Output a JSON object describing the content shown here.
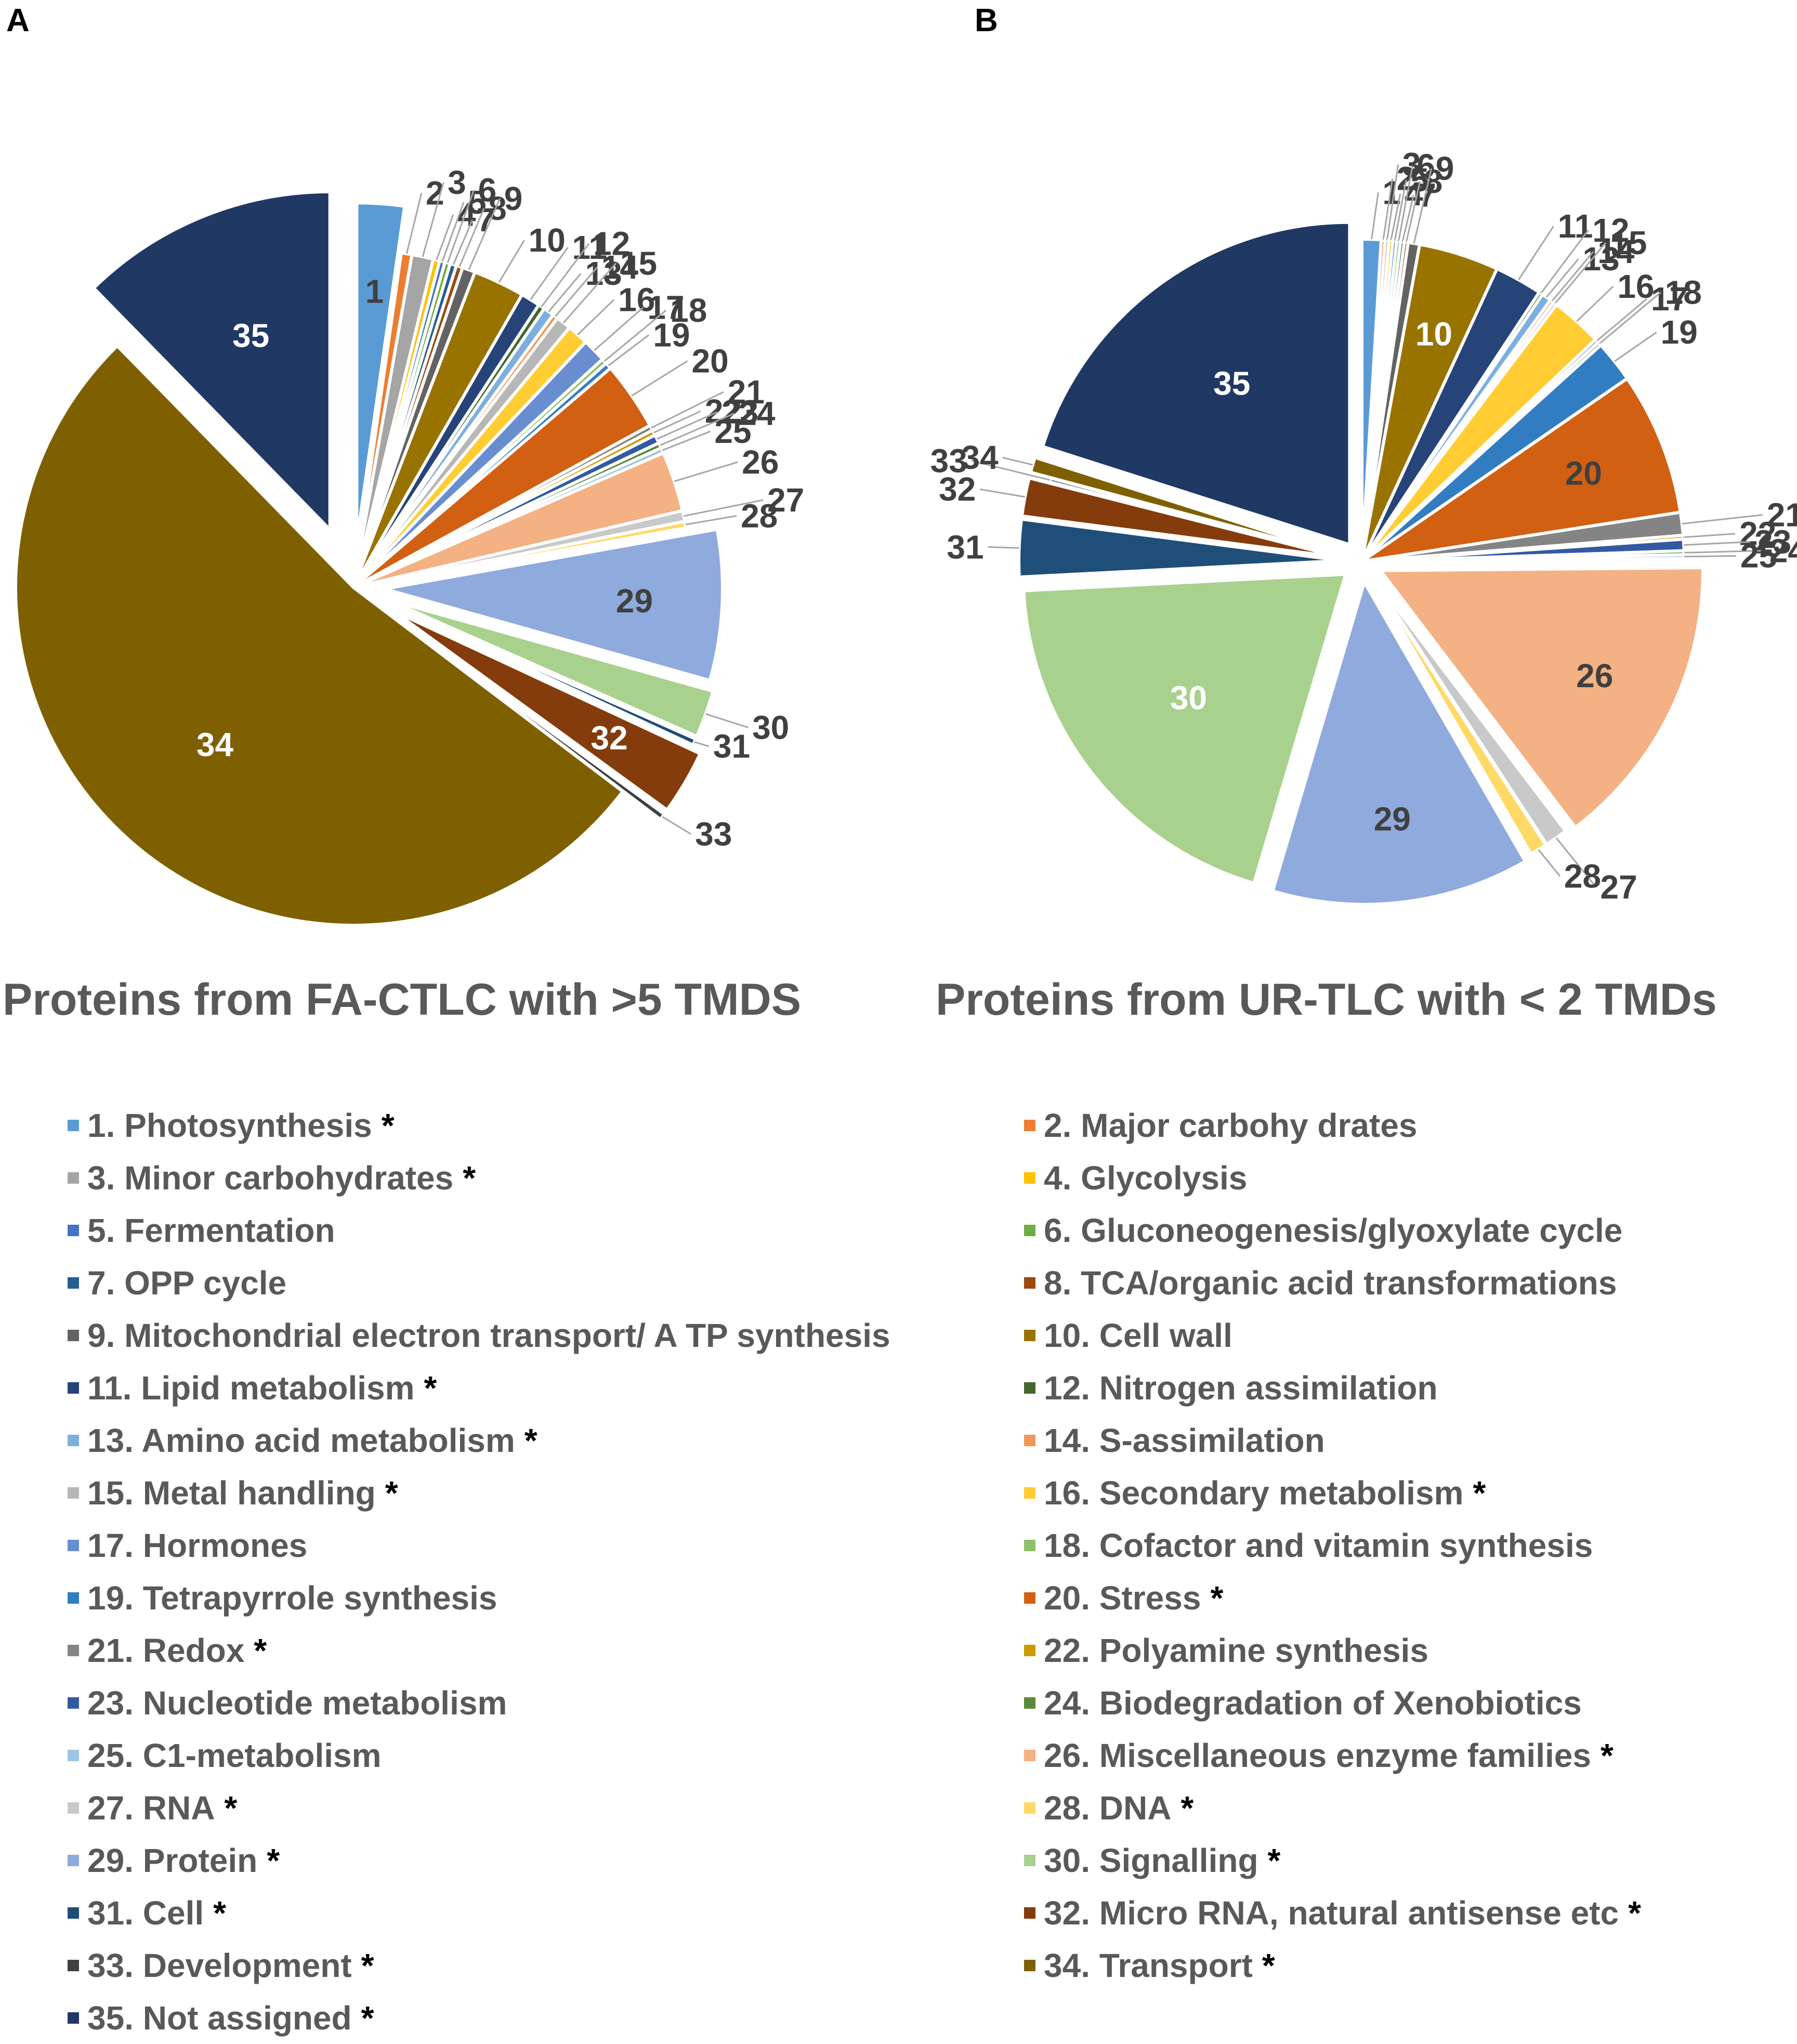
{
  "categories": [
    {
      "num": "1",
      "label": "1. Photosynthesis",
      "star": "*",
      "color": "#5b9bd5"
    },
    {
      "num": "2",
      "label": "2. Major carbohy drates",
      "star": "",
      "color": "#ed7d31"
    },
    {
      "num": "3",
      "label": "3. Minor carbohydrates",
      "star": "*",
      "color": "#a5a5a5"
    },
    {
      "num": "4",
      "label": "4. Glycolysis",
      "star": "",
      "color": "#ffc000"
    },
    {
      "num": "5",
      "label": "5. Fermentation",
      "star": "",
      "color": "#4472c4"
    },
    {
      "num": "6",
      "label": "6. Gluconeogenesis/glyoxylate cycle",
      "star": "",
      "color": "#70ad47"
    },
    {
      "num": "7",
      "label": "7. OPP cycle",
      "star": "",
      "color": "#255e91"
    },
    {
      "num": "8",
      "label": "8. TCA/organic acid transformations",
      "star": "",
      "color": "#9e480e"
    },
    {
      "num": "9",
      "label": "9. Mitochondrial electron transport/ A TP synthesis",
      "star": "",
      "color": "#636363"
    },
    {
      "num": "10",
      "label": "10. Cell wall",
      "star": "",
      "color": "#997300"
    },
    {
      "num": "11",
      "label": "11. Lipid metabolism",
      "star": "*",
      "color": "#264478"
    },
    {
      "num": "12",
      "label": "12. Nitrogen assimilation",
      "star": "",
      "color": "#43682b"
    },
    {
      "num": "13",
      "label": "13. Amino acid metabolism",
      "star": "*",
      "color": "#7cafdd"
    },
    {
      "num": "14",
      "label": "14. S-assimilation",
      "star": "",
      "color": "#f1975a"
    },
    {
      "num": "15",
      "label": "15. Metal handling",
      "star": "*",
      "color": "#b7b7b7"
    },
    {
      "num": "16",
      "label": "16. Secondary metabolism",
      "star": "*",
      "color": "#ffcd33"
    },
    {
      "num": "17",
      "label": "17. Hormones",
      "star": "",
      "color": "#698ed0"
    },
    {
      "num": "18",
      "label": "18. Cofactor and vitamin synthesis",
      "star": "",
      "color": "#8cc168"
    },
    {
      "num": "19",
      "label": "19. Tetrapyrrole synthesis",
      "star": "",
      "color": "#327dc2"
    },
    {
      "num": "20",
      "label": "20. Stress",
      "star": "*",
      "color": "#d26012"
    },
    {
      "num": "21",
      "label": "21. Redox",
      "star": "*",
      "color": "#848484"
    },
    {
      "num": "22",
      "label": "22. Polyamine synthesis",
      "star": "",
      "color": "#cc9a00"
    },
    {
      "num": "23",
      "label": "23. Nucleotide metabolism",
      "star": "",
      "color": "#335aa1"
    },
    {
      "num": "24",
      "label": "24. Biodegradation of Xenobiotics",
      "star": "",
      "color": "#5a8a39"
    },
    {
      "num": "25",
      "label": "25. C1-metabolism",
      "star": "",
      "color": "#9dc3e6"
    },
    {
      "num": "26",
      "label": "26. Miscellaneous enzyme families",
      "star": "*",
      "color": "#f4b183"
    },
    {
      "num": "27",
      "label": "27. RNA",
      "star": "*",
      "color": "#c9c9c9"
    },
    {
      "num": "28",
      "label": "28. DNA",
      "star": "*",
      "color": "#ffd966"
    },
    {
      "num": "29",
      "label": "29. Protein",
      "star": "*",
      "color": "#8faadc"
    },
    {
      "num": "30",
      "label": "30. Signalling",
      "star": "*",
      "color": "#a9d18e"
    },
    {
      "num": "31",
      "label": "31. Cell",
      "star": "*",
      "color": "#1f4e79"
    },
    {
      "num": "32",
      "label": "32. Micro RNA, natural antisense etc",
      "star": "*",
      "color": "#843c0c"
    },
    {
      "num": "33",
      "label": "33. Development",
      "star": "*",
      "color": "#404040"
    },
    {
      "num": "34",
      "label": "34. Transport",
      "star": "*",
      "color": "#7f6000"
    },
    {
      "num": "35",
      "label": "35. Not assigned",
      "star": "*",
      "color": "#203864"
    }
  ],
  "chart_data": [
    {
      "type": "pie",
      "panel": "A",
      "title": "Proteins from FA-CTLC with >5 TMDS",
      "labels": [
        "1",
        "2",
        "3",
        "4",
        "5",
        "6",
        "7",
        "8",
        "9",
        "10",
        "11",
        "12",
        "13",
        "14",
        "15",
        "16",
        "17",
        "18",
        "19",
        "20",
        "21",
        "22",
        "23",
        "24",
        "25",
        "26",
        "27",
        "28",
        "29",
        "30",
        "31",
        "32",
        "33",
        "34",
        "35"
      ],
      "values": [
        2.2,
        0.5,
        1.0,
        0.3,
        0.25,
        0.25,
        0.3,
        0.3,
        0.6,
        2.4,
        0.9,
        0.3,
        0.5,
        0.25,
        0.7,
        1.0,
        1.1,
        0.25,
        0.3,
        3.2,
        0.25,
        0.25,
        0.4,
        0.25,
        0.25,
        2.8,
        0.5,
        0.3,
        7.0,
        2.2,
        0.3,
        3.0,
        0.3,
        51.0,
        12.0
      ],
      "inside_labels": [
        "1",
        "29",
        "32",
        "34",
        "35"
      ]
    },
    {
      "type": "pie",
      "panel": "B",
      "title": "Proteins from UR-TLC with < 2 TMDs",
      "labels": [
        "1",
        "2",
        "3",
        "4",
        "5",
        "6",
        "7",
        "8",
        "9",
        "10",
        "11",
        "12",
        "13",
        "14",
        "15",
        "16",
        "17",
        "18",
        "19",
        "20",
        "21",
        "22",
        "23",
        "24",
        "25",
        "26",
        "27",
        "28",
        "29",
        "30",
        "31",
        "32",
        "33",
        "34",
        "35"
      ],
      "values": [
        1.0,
        0.2,
        0.2,
        0.2,
        0.2,
        0.2,
        0.2,
        0.2,
        0.6,
        4.2,
        2.5,
        0.2,
        0.5,
        0.2,
        0.2,
        2.7,
        0.2,
        0.2,
        2.2,
        7.5,
        1.2,
        0.2,
        0.6,
        0.2,
        0.2,
        15.5,
        1.2,
        0.9,
        13.5,
        20.5,
        3.0,
        2.0,
        0.2,
        0.8,
        21.0
      ],
      "inside_labels": [
        "10",
        "20",
        "26",
        "29",
        "30",
        "35"
      ]
    }
  ]
}
